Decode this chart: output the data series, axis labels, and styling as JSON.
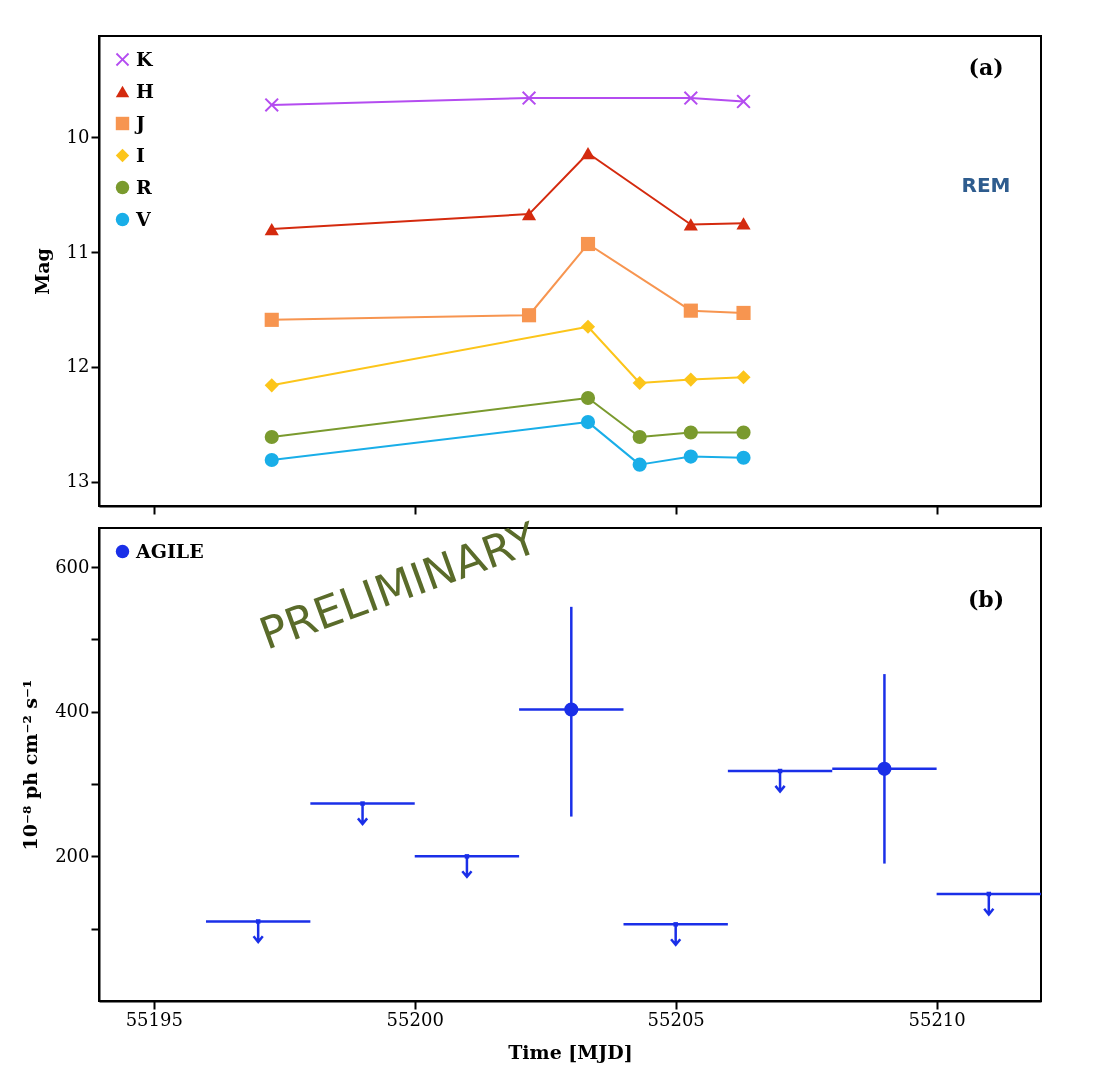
{
  "chart_data": [
    {
      "type": "line",
      "ylabel": "Mag",
      "xlim": [
        55193.95,
        55212
      ],
      "xticks": [
        55195,
        55200,
        55205,
        55210
      ],
      "ylim": [
        13.21,
        9.12
      ],
      "yticks": [
        10,
        11,
        12,
        13
      ],
      "tick_labels": "y",
      "legend": "top left",
      "annotations": [
        "(a)",
        "REM"
      ],
      "series": [
        {
          "name": "K",
          "color": "#b44cf0",
          "marker": "cross",
          "x": [
            55197.26,
            55202.19,
            55205.29,
            55206.3
          ],
          "values": [
            9.72,
            9.66,
            9.66,
            9.69
          ]
        },
        {
          "name": "H",
          "color": "#d42a0e",
          "marker": "triangle",
          "x": [
            55197.26,
            55202.19,
            55203.32,
            55205.29,
            55206.3
          ],
          "values": [
            10.8,
            10.67,
            10.14,
            10.76,
            10.75
          ]
        },
        {
          "name": "J",
          "color": "#f79550",
          "marker": "square",
          "x": [
            55197.26,
            55202.19,
            55203.32,
            55205.29,
            55206.3
          ],
          "values": [
            11.59,
            11.55,
            10.93,
            11.51,
            11.53
          ]
        },
        {
          "name": "I",
          "color": "#fcc51a",
          "marker": "diamond",
          "x": [
            55197.26,
            55203.32,
            55204.31,
            55205.29,
            55206.3
          ],
          "values": [
            12.16,
            11.65,
            12.14,
            12.11,
            12.09
          ]
        },
        {
          "name": "R",
          "color": "#7a9a2e",
          "marker": "circle",
          "x": [
            55197.26,
            55203.32,
            55204.31,
            55205.29,
            55206.3
          ],
          "values": [
            12.61,
            12.27,
            12.61,
            12.57,
            12.57
          ]
        },
        {
          "name": "V",
          "color": "#19aee8",
          "marker": "circle",
          "x": [
            55197.26,
            55203.32,
            55204.31,
            55205.29,
            55206.3
          ],
          "values": [
            12.81,
            12.48,
            12.85,
            12.78,
            12.79
          ]
        }
      ]
    },
    {
      "type": "scatter",
      "xlabel": "Time [MJD]",
      "ylabel": "10⁻⁸ ph cm⁻² s⁻¹",
      "xlim": [
        55193.95,
        55212
      ],
      "xticks": [
        55195,
        55200,
        55205,
        55210
      ],
      "ylim": [
        0,
        654
      ],
      "yticks": [
        {
          "value": 100,
          "label": null
        },
        200,
        {
          "value": 300,
          "label": null
        },
        400,
        {
          "value": 500,
          "label": null
        },
        600
      ],
      "legend": "top left",
      "annotations": [
        "(b)",
        "PRELIMINARY"
      ],
      "series": [
        {
          "name": "AGILE",
          "color": "#1a2fe8",
          "marker": "circle",
          "x": [
            55203,
            55209
          ],
          "values": [
            403,
            321
          ],
          "errors": [
            [
              255,
              545
            ],
            [
              190,
              452
            ]
          ],
          "xerrors": [
            1,
            1
          ]
        },
        {
          "color": "#1a2fe8",
          "marker": "square",
          "x": [
            55197,
            55199,
            55201,
            55205,
            55207,
            55211
          ],
          "values": [
            110,
            273,
            200,
            106,
            318,
            148
          ],
          "xerrors": [
            1,
            1,
            1,
            1,
            1,
            1
          ]
        }
      ]
    }
  ]
}
